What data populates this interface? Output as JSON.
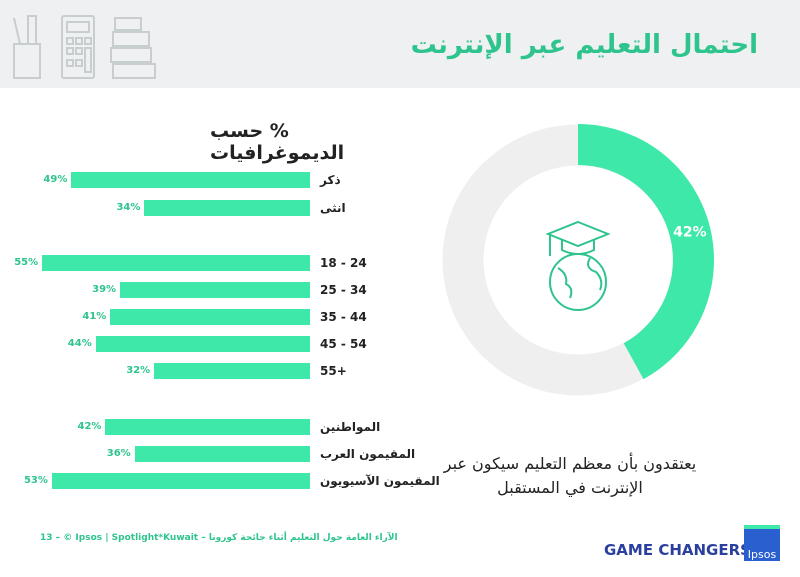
{
  "header": {
    "title": "احتمال التعليم عبر الإنترنت"
  },
  "chart_data": [
    {
      "type": "bar",
      "title": "% حسب الديموغرافيات",
      "orientation": "horizontal",
      "categories": [
        "ذكر",
        "انثى",
        "18 - 24",
        "25 - 34",
        "35 - 44",
        "45 - 54",
        "55+",
        "المواطنين",
        "المقيمون العرب",
        "المقيمون الآسيويون"
      ],
      "values": [
        49,
        34,
        55,
        39,
        41,
        44,
        32,
        42,
        36,
        53
      ],
      "labels": [
        "49%",
        "34%",
        "55%",
        "39%",
        "41%",
        "44%",
        "32%",
        "42%",
        "36%",
        "53%"
      ],
      "xlim": [
        0,
        55
      ]
    },
    {
      "type": "pie",
      "donut": true,
      "values": [
        42,
        58
      ],
      "labels": [
        "42%",
        ""
      ],
      "caption": "يعتقدون بأن معظم التعليم سيكون عبر الإنترنت في المستقبل"
    }
  ],
  "footer": {
    "text": "13 – © Ipsos | Spotlight*Kuwait – الآراء العامة حول التعليم أثناء جائحة كورونا",
    "brand": "GAME CHANGERS",
    "logo": "Ipsos"
  },
  "colors": {
    "accent": "#3de8a8",
    "title": "#2fc48d",
    "track": "#efefef"
  }
}
